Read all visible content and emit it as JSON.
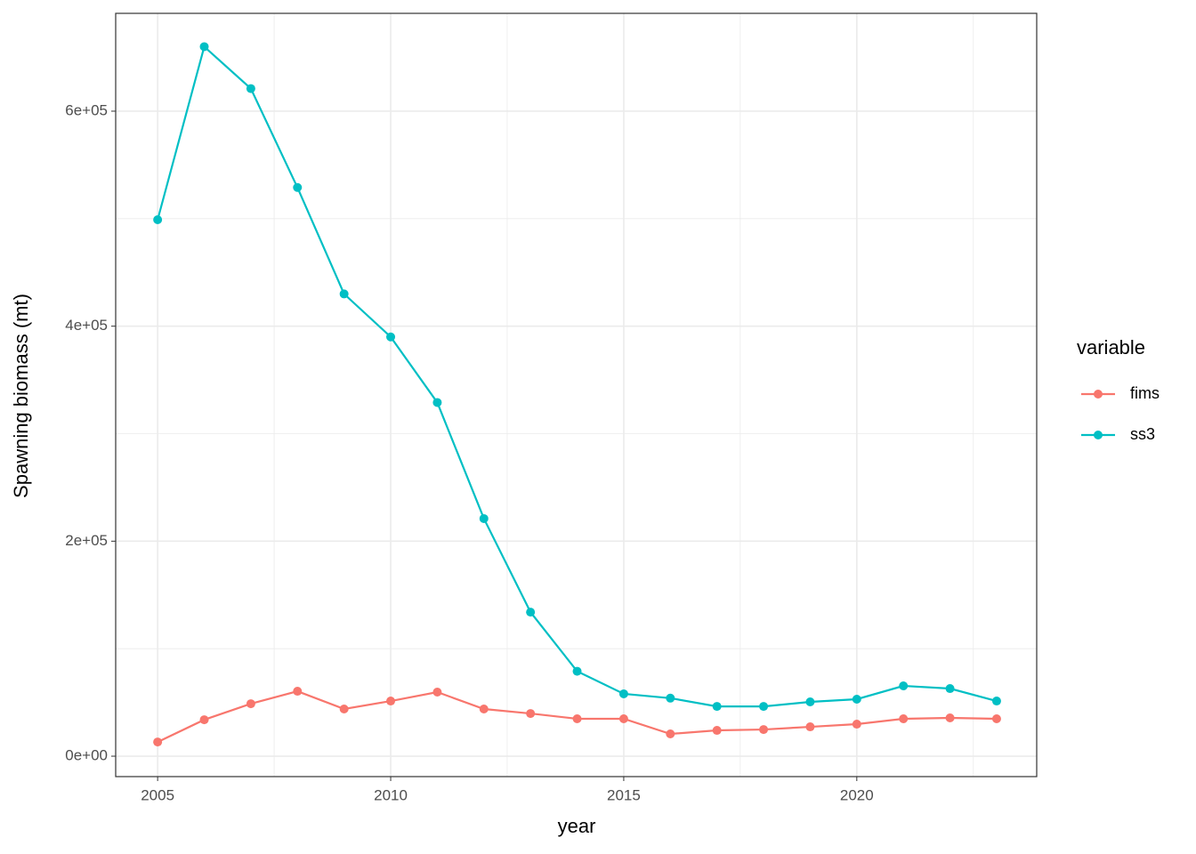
{
  "chart_data": {
    "type": "line",
    "x_label": "year",
    "y_label": "Spawning biomass (mt)",
    "legend_title": "variable",
    "legend_position": "right",
    "x": [
      2005,
      2006,
      2007,
      2008,
      2009,
      2010,
      2011,
      2012,
      2013,
      2014,
      2015,
      2016,
      2017,
      2018,
      2019,
      2020,
      2021,
      2022,
      2023
    ],
    "series": [
      {
        "name": "fims",
        "color": "#f8766d",
        "values": [
          13200,
          33900,
          48800,
          60400,
          43900,
          51300,
          59600,
          43900,
          39700,
          34800,
          34800,
          20700,
          24000,
          24800,
          27300,
          29800,
          34800,
          35600,
          34800
        ]
      },
      {
        "name": "ss3",
        "color": "#00bfc4",
        "values": [
          499000,
          660000,
          621000,
          529000,
          430000,
          390000,
          329000,
          221000,
          134000,
          79000,
          58000,
          54000,
          46300,
          46300,
          50500,
          53000,
          65400,
          62900,
          51300
        ]
      }
    ],
    "xlim": [
      2004.1,
      2023.86
    ],
    "ylim": [
      -19000,
      691000
    ],
    "xticks": [
      2005,
      2010,
      2015,
      2020
    ],
    "yticks": [
      {
        "value": 0,
        "label": "0e+00"
      },
      {
        "value": 200000,
        "label": "2e+05"
      },
      {
        "value": 400000,
        "label": "4e+05"
      },
      {
        "value": 600000,
        "label": "6e+05"
      }
    ],
    "xminor": [
      2007.5,
      2012.5,
      2017.5,
      2022.5
    ],
    "yminor": [
      100000,
      300000,
      500000
    ],
    "grid": true
  }
}
